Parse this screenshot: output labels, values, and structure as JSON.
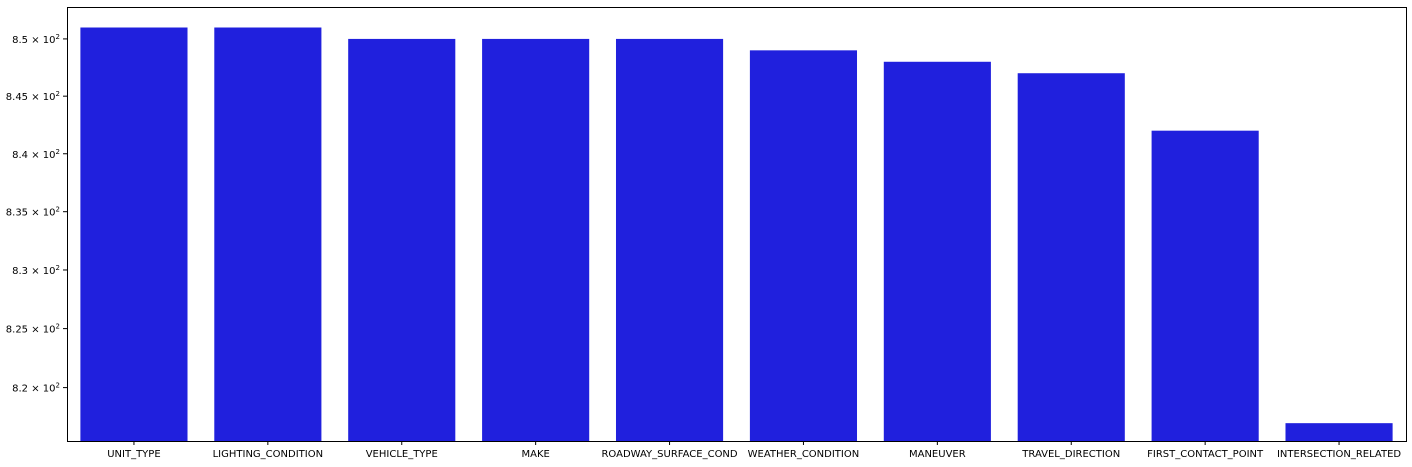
{
  "chart_data": {
    "type": "bar",
    "categories": [
      "UNIT_TYPE",
      "LIGHTING_CONDITION",
      "VEHICLE_TYPE",
      "MAKE",
      "ROADWAY_SURFACE_COND",
      "WEATHER_CONDITION",
      "MANEUVER",
      "TRAVEL_DIRECTION",
      "FIRST_CONTACT_POINT",
      "INTERSECTION_RELATED"
    ],
    "values": [
      851,
      851,
      850,
      850,
      850,
      849,
      848,
      847,
      842,
      817
    ],
    "ylim": [
      815.5,
      852.8
    ],
    "yscale": "log",
    "yticks": [
      {
        "value": 820,
        "mantissa": "8.2",
        "base": "10",
        "exp": "2"
      },
      {
        "value": 825,
        "mantissa": "8.25",
        "base": "10",
        "exp": "2"
      },
      {
        "value": 830,
        "mantissa": "8.3",
        "base": "10",
        "exp": "2"
      },
      {
        "value": 835,
        "mantissa": "8.35",
        "base": "10",
        "exp": "2"
      },
      {
        "value": 840,
        "mantissa": "8.4",
        "base": "10",
        "exp": "2"
      },
      {
        "value": 845,
        "mantissa": "8.45",
        "base": "10",
        "exp": "2"
      },
      {
        "value": 850,
        "mantissa": "8.5",
        "base": "10",
        "exp": "2"
      }
    ],
    "title": "",
    "xlabel": "",
    "ylabel": "",
    "grid": false,
    "bar_color": "#2020dd"
  }
}
